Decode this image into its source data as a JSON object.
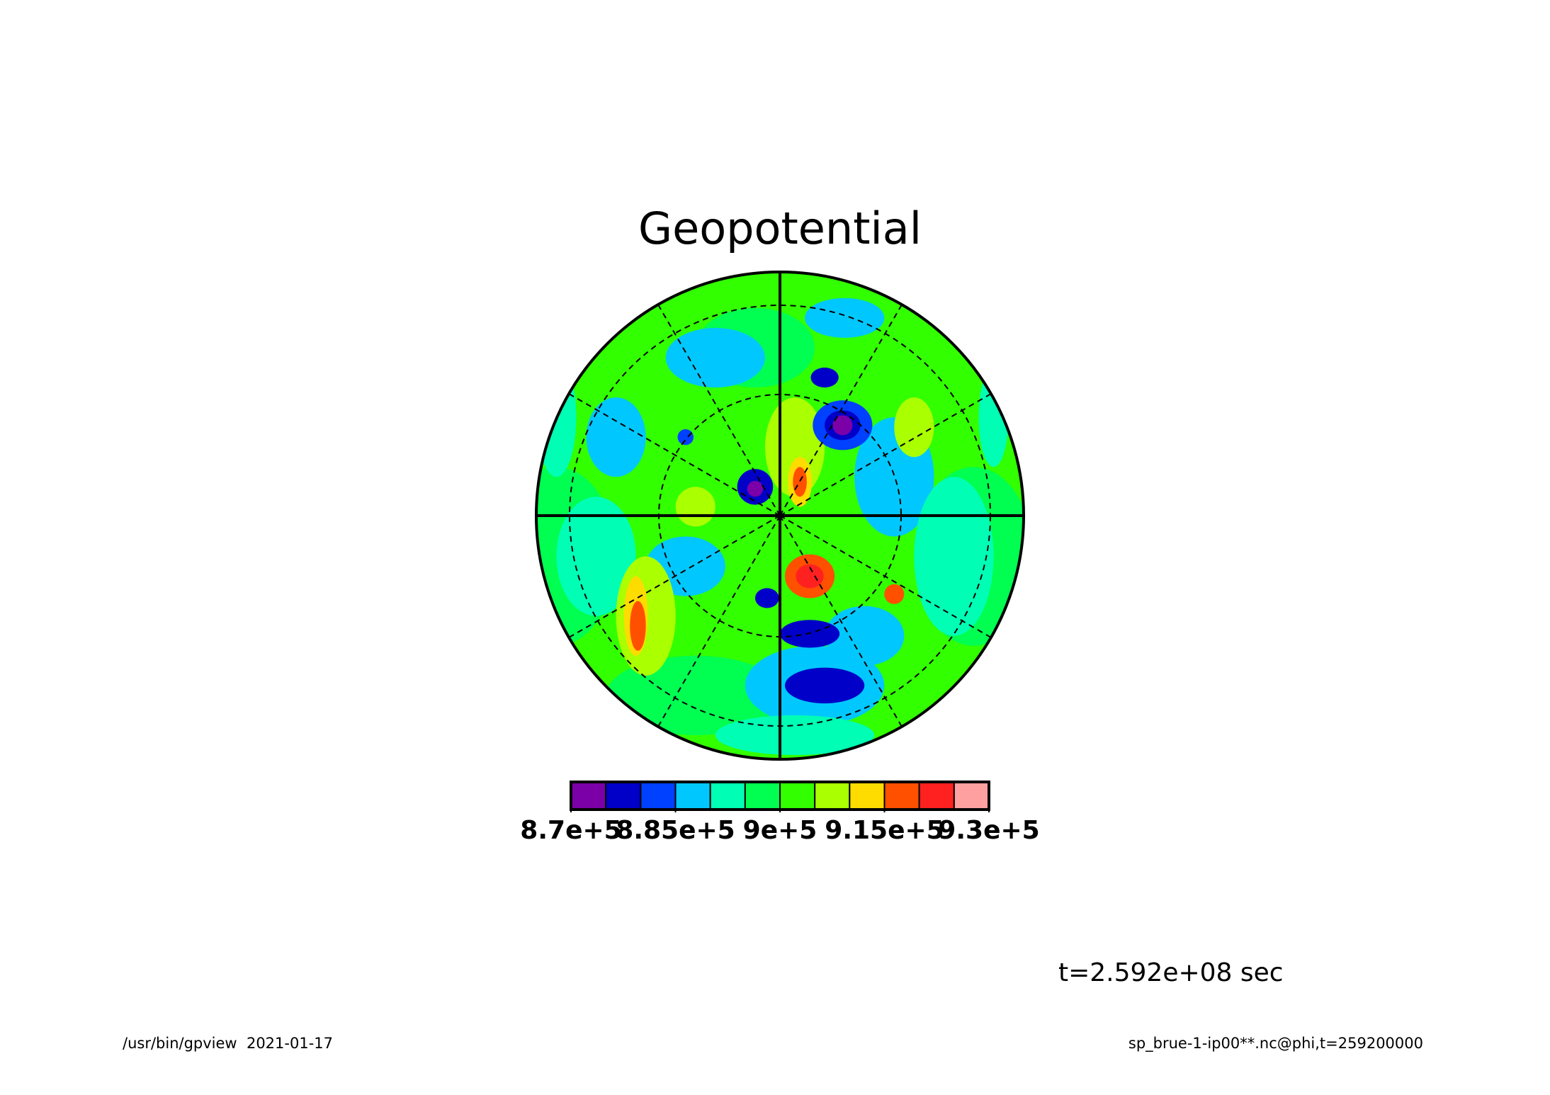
{
  "chart_data": {
    "type": "contour",
    "title": "Geopotential",
    "levels": [
      870000,
      875000,
      880000,
      885000,
      890000,
      895000,
      900000,
      905000,
      910000,
      915000,
      920000,
      925000,
      930000
    ],
    "colors": [
      "#7b00a8",
      "#0000c8",
      "#0040ff",
      "#00c8ff",
      "#00ffb4",
      "#00ff50",
      "#32ff00",
      "#aaff00",
      "#ffdc00",
      "#ff5000",
      "#ff2020",
      "#ffa0a0"
    ],
    "clim": [
      870000,
      930000
    ],
    "cticks": [
      {
        "value": 870000,
        "label": "8.7e+5"
      },
      {
        "value": 885000,
        "label": "8.85e+5"
      },
      {
        "value": 900000,
        "label": "9e+5"
      },
      {
        "value": 915000,
        "label": "9.15e+5"
      },
      {
        "value": 930000,
        "label": "9.3e+5"
      }
    ],
    "annotation": "t=2.592e+08 sec",
    "footer_left": "/usr/bin/gpview  2021-01-17",
    "footer_right": "sp_brue-1-ip00**.nc@phi,t=259200000"
  }
}
